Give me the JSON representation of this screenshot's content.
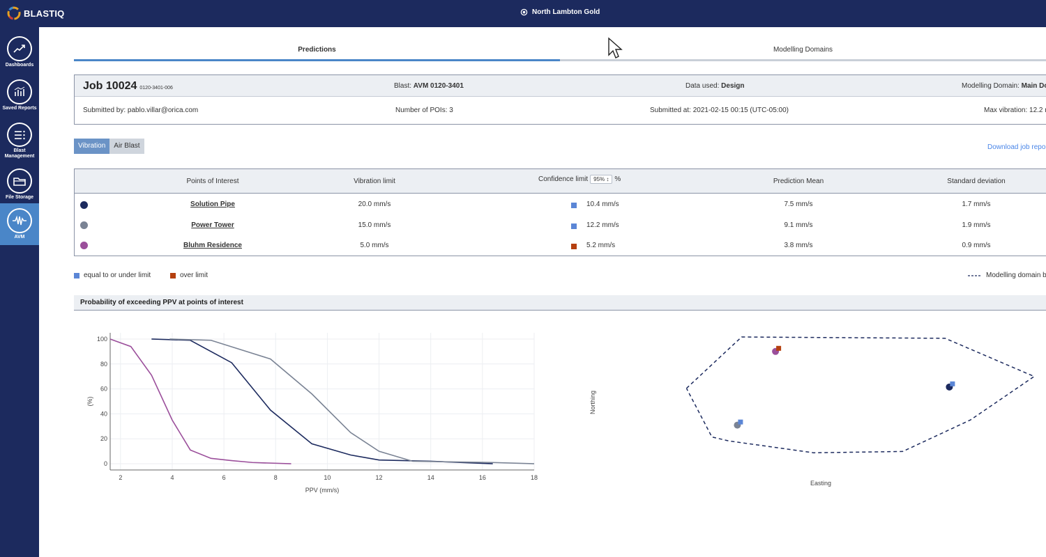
{
  "app": {
    "logo_text": "BLASTIQ",
    "site_name": "North Lambton Gold"
  },
  "sidebar": {
    "items": [
      {
        "label": "Dashboards",
        "icon": "trend-chart-icon"
      },
      {
        "label": "Saved Reports",
        "icon": "bar-chart-icon"
      },
      {
        "label": "Blast Management",
        "icon": "list-icon"
      },
      {
        "label": "File Storage",
        "icon": "folder-icon"
      },
      {
        "label": "AVM",
        "icon": "waveform-icon",
        "active": true
      }
    ]
  },
  "tabs": [
    {
      "label": "Predictions",
      "active": true
    },
    {
      "label": "Modelling Domains",
      "active": false
    }
  ],
  "job": {
    "title": "Job 10024",
    "code": "0120-3401-006",
    "blast_label": "Blast:",
    "blast_value": "AVM 0120-3401",
    "data_used_label": "Data used:",
    "data_used_value": "Design",
    "domain_label": "Modelling Domain:",
    "domain_value": "Main Do",
    "submitted_by": "Submitted by: pablo.villar@orica.com",
    "num_pois": "Number of POIs: 3",
    "submitted_at": "Submitted at: 2021-02-15 00:15 (UTC-05:00)",
    "max_vibration": "Max vibration: 12.2 m"
  },
  "mode_toggle": {
    "vibration": "Vibration",
    "air_blast": "Air Blast"
  },
  "download_link": "Download job repor",
  "table": {
    "headers": {
      "poi": "Points of Interest",
      "limit": "Vibration limit",
      "confidence": "Confidence limit",
      "confidence_value": "95% ↕",
      "confidence_unit": "%",
      "mean": "Prediction Mean",
      "std": "Standard deviation"
    },
    "rows": [
      {
        "name": "Solution Pipe",
        "limit": "20.0 mm/s",
        "confidence": "10.4 mm/s",
        "mean": "7.5 mm/s",
        "std": "1.7 mm/s",
        "color": "#1c2a5e",
        "status": "under"
      },
      {
        "name": "Power Tower",
        "limit": "15.0 mm/s",
        "confidence": "12.2 mm/s",
        "mean": "9.1 mm/s",
        "std": "1.9 mm/s",
        "color": "#7a8394",
        "status": "under"
      },
      {
        "name": "Bluhm Residence",
        "limit": "5.0 mm/s",
        "confidence": "5.2 mm/s",
        "mean": "3.8 mm/s",
        "std": "0.9 mm/s",
        "color": "#9b4f9b",
        "status": "over"
      }
    ]
  },
  "legend": {
    "under": "equal to or under limit",
    "over": "over limit",
    "boundary": "Modelling domain b"
  },
  "colors": {
    "under": "#5b86d6",
    "over": "#b5400f",
    "nav": "#1c2a5e",
    "accent": "#4a86c8"
  },
  "section_title": "Probability of exceeding PPV at points of interest",
  "chart_data": [
    {
      "type": "line",
      "xlabel": "PPV (mm/s)",
      "ylabel": "(%)",
      "xlim": [
        1.6,
        18
      ],
      "ylim": [
        -5,
        105
      ],
      "xticks": [
        2,
        4,
        6,
        8,
        10,
        12,
        14,
        16,
        18
      ],
      "yticks": [
        0,
        20,
        40,
        60,
        80,
        100
      ],
      "grid": true,
      "series": [
        {
          "color": "#9b4f9b",
          "points": [
            [
              1.6,
              100
            ],
            [
              2.4,
              94
            ],
            [
              3.2,
              71
            ],
            [
              4.0,
              35
            ],
            [
              4.7,
              11
            ],
            [
              5.5,
              4.3
            ],
            [
              6.3,
              2.5
            ],
            [
              7.1,
              1
            ],
            [
              8.6,
              0
            ]
          ]
        },
        {
          "color": "#1c2a5e",
          "points": [
            [
              3.2,
              100
            ],
            [
              4.7,
              99
            ],
            [
              6.3,
              81
            ],
            [
              7.8,
              43
            ],
            [
              9.4,
              16
            ],
            [
              10.9,
              7
            ],
            [
              12.0,
              3
            ],
            [
              14.0,
              2
            ],
            [
              16.4,
              0
            ]
          ]
        },
        {
          "color": "#7a8394",
          "points": [
            [
              3.9,
              100
            ],
            [
              5.5,
              99
            ],
            [
              7.8,
              84
            ],
            [
              9.4,
              56
            ],
            [
              10.9,
              25
            ],
            [
              12.0,
              10
            ],
            [
              13.3,
              2
            ],
            [
              16.4,
              1
            ],
            [
              18.0,
              0
            ]
          ]
        }
      ]
    },
    {
      "type": "scatter",
      "xlabel": "Easting",
      "ylabel": "Northing",
      "boundary": [
        [
          0.18,
          0.61
        ],
        [
          0.31,
          1.0
        ],
        [
          0.79,
          0.99
        ],
        [
          1.0,
          0.7
        ],
        [
          0.85,
          0.37
        ],
        [
          0.69,
          0.13
        ],
        [
          0.48,
          0.12
        ],
        [
          0.28,
          0.21
        ],
        [
          0.24,
          0.24
        ],
        [
          0.18,
          0.61
        ]
      ],
      "points": [
        {
          "name": "Bluhm Residence",
          "easting": 0.39,
          "northing": 0.89,
          "color": "#9b4f9b",
          "status": "over"
        },
        {
          "name": "Solution Pipe",
          "easting": 0.8,
          "northing": 0.62,
          "color": "#1c2a5e",
          "status": "under"
        },
        {
          "name": "Power Tower",
          "easting": 0.3,
          "northing": 0.33,
          "color": "#7a8394",
          "status": "under"
        }
      ]
    }
  ]
}
